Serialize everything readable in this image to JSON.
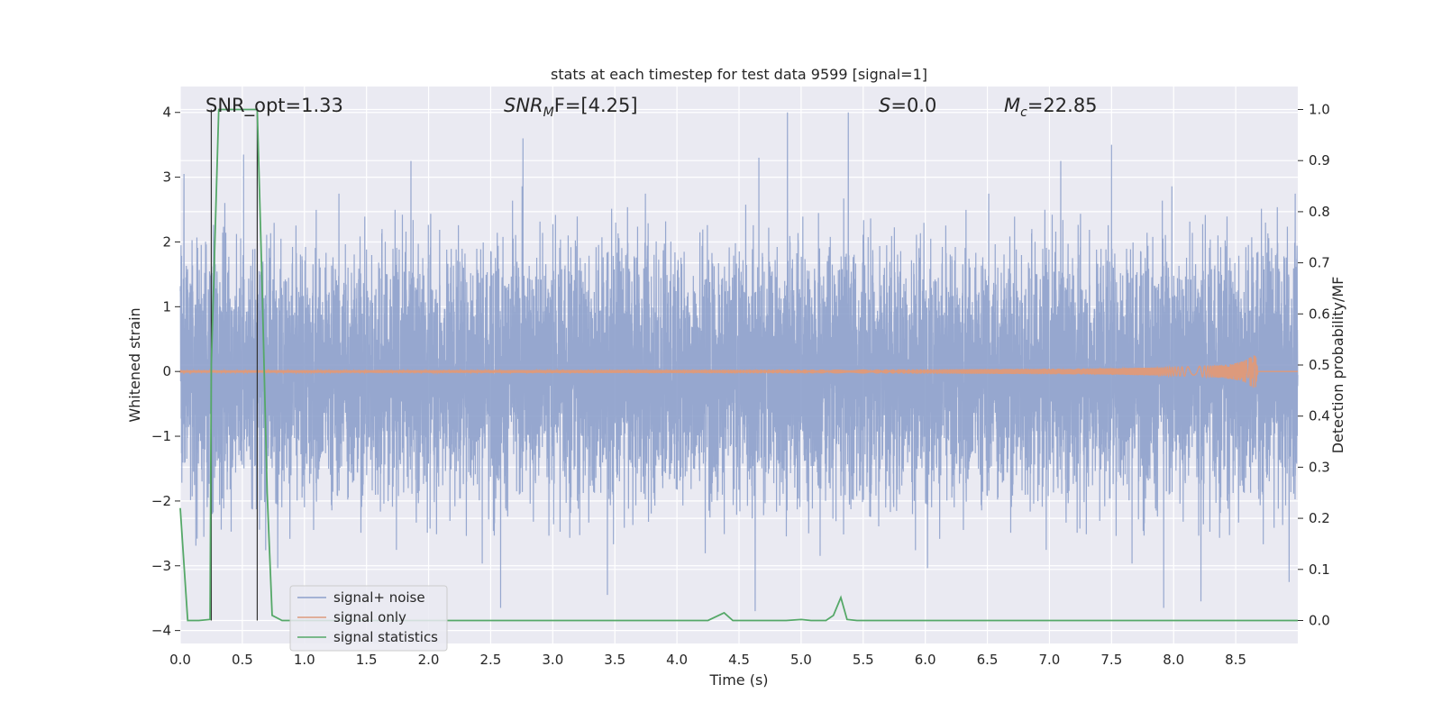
{
  "chart_data": {
    "type": "line",
    "title": "stats at each timestep for test data 9599 [signal=1]",
    "xlabel": "Time (s)",
    "ylabel": "Whitened strain",
    "ylabel_right": "Detection probability/MF",
    "xlim": [
      0.0,
      9.0
    ],
    "ylim": [
      -4.2,
      4.4
    ],
    "ylim_right": [
      -0.045,
      1.045
    ],
    "xticks": [
      0.0,
      0.5,
      1.0,
      1.5,
      2.0,
      2.5,
      3.0,
      3.5,
      4.0,
      4.5,
      5.0,
      5.5,
      6.0,
      6.5,
      7.0,
      7.5,
      8.0,
      8.5
    ],
    "xtick_labels": [
      "0.0",
      "0.5",
      "1.0",
      "1.5",
      "2.0",
      "2.5",
      "3.0",
      "3.5",
      "4.0",
      "4.5",
      "5.0",
      "5.5",
      "6.0",
      "6.5",
      "7.0",
      "7.5",
      "8.0",
      "8.5"
    ],
    "yticks": [
      4,
      3,
      2,
      1,
      0,
      -1,
      -2,
      -3,
      -4
    ],
    "ytick_labels": [
      "4",
      "3",
      "2",
      "1",
      "0",
      "−1",
      "−2",
      "−3",
      "−4"
    ],
    "yticks_right": [
      1.0,
      0.9,
      0.8,
      0.7,
      0.6,
      0.5,
      0.4,
      0.3,
      0.2,
      0.1,
      0.0
    ],
    "ytick_labels_right": [
      "1.0",
      "0.9",
      "0.8",
      "0.7",
      "0.6",
      "0.5",
      "0.4",
      "0.3",
      "0.2",
      "0.1",
      "0.0"
    ],
    "grid": true,
    "legend_position": "bottom-left",
    "annotations": {
      "snr_opt": "SNR_opt=1.33",
      "snr_mf_sym": "SNR",
      "snr_mf_sub": "M",
      "snr_mf_rest": "F=[4.25]",
      "s_sym": "S",
      "s_rest": "=0.0",
      "mc_sym": "M",
      "mc_sub": "c",
      "mc_rest": "=22.85"
    },
    "vlines_x": [
      0.25,
      0.62
    ],
    "series": [
      {
        "name": "signal+ noise",
        "color": "#8da0cb",
        "axis": "left",
        "style": "dense noise, about 1 sample per ms, amplitude mostly within ±2.5 with peaks near ±4",
        "spikes": [
          {
            "x": 0.03,
            "y": 3.05
          },
          {
            "x": 0.51,
            "y": 3.35
          },
          {
            "x": 2.76,
            "y": 3.6
          },
          {
            "x": 4.66,
            "y": 3.3
          },
          {
            "x": 4.89,
            "y": 4.0
          },
          {
            "x": 5.38,
            "y": 4.0
          },
          {
            "x": 7.5,
            "y": 3.5
          },
          {
            "x": 2.58,
            "y": -3.65
          },
          {
            "x": 3.44,
            "y": -3.45
          },
          {
            "x": 4.63,
            "y": -3.7
          },
          {
            "x": 7.92,
            "y": -3.65
          },
          {
            "x": 8.22,
            "y": -3.55
          },
          {
            "x": 8.93,
            "y": -3.25
          }
        ]
      },
      {
        "name": "signal only",
        "color": "#dd9a7c",
        "axis": "left",
        "style": "chirp: flat near 0, amplitude rising to about 0.25 around 8.6 s, ending at 8.68 s",
        "chirp_end": 8.68,
        "peak_amplitude": 0.25
      },
      {
        "name": "signal statistics",
        "color": "#55a868",
        "axis": "right",
        "x": [
          0.0,
          0.06,
          0.15,
          0.24,
          0.25,
          0.31,
          0.62,
          0.66,
          0.7,
          0.74,
          0.82,
          1.0,
          2.0,
          3.0,
          4.0,
          4.25,
          4.38,
          4.45,
          4.6,
          4.88,
          5.0,
          5.08,
          5.2,
          5.26,
          5.32,
          5.37,
          5.45,
          6.0,
          7.0,
          8.0,
          9.0
        ],
        "y": [
          0.22,
          0.0,
          0.0,
          0.002,
          0.5,
          1.0,
          1.0,
          0.65,
          0.25,
          0.01,
          0.0,
          0.0,
          0.0,
          0.0,
          0.0,
          0.0,
          0.015,
          0.0,
          0.0,
          0.0,
          0.002,
          0.0,
          0.0,
          0.01,
          0.045,
          0.002,
          0.0,
          0.0,
          0.0,
          0.0,
          0.0
        ]
      }
    ]
  }
}
